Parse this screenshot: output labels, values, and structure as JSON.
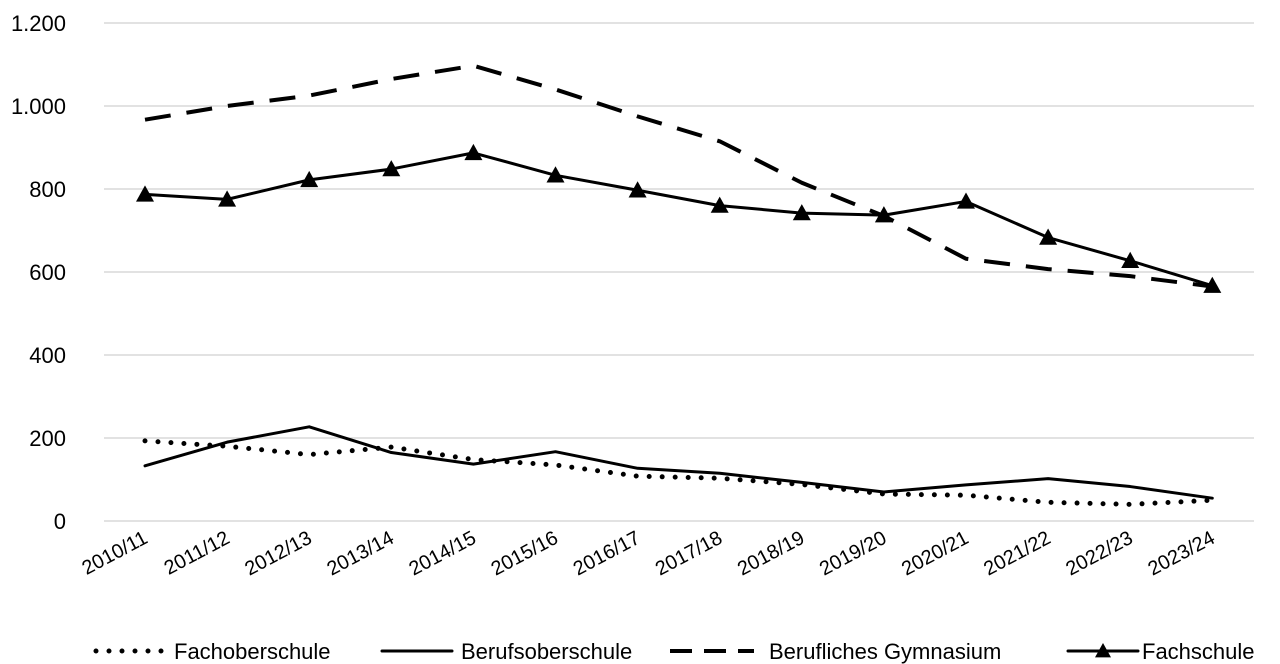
{
  "chart_data": {
    "type": "line",
    "title": "",
    "xlabel": "",
    "ylabel": "",
    "ylim": [
      0,
      1200
    ],
    "y_ticks": [
      0,
      200,
      400,
      600,
      800,
      1000,
      1200
    ],
    "y_tick_labels": [
      "0",
      "200",
      "400",
      "600",
      "800",
      "1.000",
      "1.200"
    ],
    "grid": "horizontal",
    "legend_position": "bottom",
    "categories": [
      "2010/11",
      "2011/12",
      "2012/13",
      "2013/14",
      "2014/15",
      "2015/16",
      "2016/17",
      "2017/18",
      "2018/19",
      "2019/20",
      "2020/21",
      "2021/22",
      "2022/23",
      "2023/24"
    ],
    "series": [
      {
        "name": "Fachoberschule",
        "style": "dotted",
        "color": "#000000",
        "values": [
          193,
          180,
          160,
          178,
          148,
          135,
          108,
          103,
          88,
          65,
          62,
          45,
          40,
          50
        ]
      },
      {
        "name": "Berufsoberschule",
        "style": "solid",
        "color": "#000000",
        "values": [
          133,
          190,
          227,
          165,
          137,
          167,
          127,
          115,
          93,
          70,
          87,
          102,
          83,
          55
        ]
      },
      {
        "name": "Berufliches Gymnasium",
        "style": "dashed",
        "color": "#000000",
        "values": [
          967,
          1000,
          1025,
          1065,
          1097,
          1040,
          975,
          915,
          815,
          735,
          632,
          607,
          590,
          565
        ]
      },
      {
        "name": "Fachschule",
        "style": "solid-triangle",
        "color": "#000000",
        "values": [
          787,
          775,
          822,
          848,
          887,
          833,
          797,
          760,
          742,
          737,
          770,
          683,
          627,
          567
        ]
      }
    ]
  }
}
